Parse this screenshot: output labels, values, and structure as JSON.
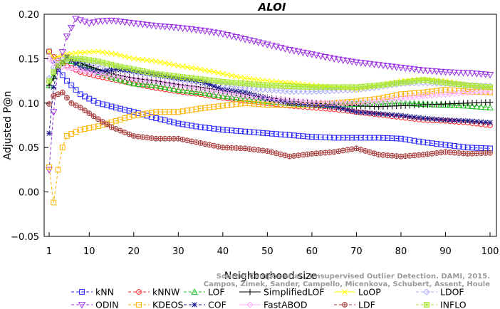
{
  "chart_data": {
    "type": "line",
    "title": "ALOI",
    "xlabel": "Neighborhood size",
    "ylabel": "Adjusted P@n",
    "xlim": [
      1,
      100
    ],
    "ylim": [
      -0.05,
      0.2
    ],
    "xticks": [
      "1",
      "10",
      "20",
      "30",
      "40",
      "50",
      "60",
      "70",
      "80",
      "90",
      "100"
    ],
    "yticks": [
      "−0.05",
      "0.00",
      "0.05",
      "0.10",
      "0.15",
      "0.20"
    ],
    "grid": false,
    "legend": "bottom",
    "watermark": [
      "Source: Campos et al., Unsupervised Outlier Detection. DAMI, 2015.",
      "Campos, Zimek, Sander, Campello, Micenkova, Schubert, Assent, Houle"
    ],
    "series": [
      {
        "name": "kNN",
        "color": "#2323ff",
        "marker": "square",
        "dash": "4,3",
        "points": [
          [
            1,
            0.158
          ],
          [
            2,
            0.148
          ],
          [
            3,
            0.138
          ],
          [
            5,
            0.125
          ],
          [
            8,
            0.11
          ],
          [
            12,
            0.1
          ],
          [
            16,
            0.095
          ],
          [
            20,
            0.09
          ],
          [
            25,
            0.083
          ],
          [
            30,
            0.077
          ],
          [
            35,
            0.073
          ],
          [
            40,
            0.07
          ],
          [
            45,
            0.068
          ],
          [
            50,
            0.066
          ],
          [
            55,
            0.064
          ],
          [
            60,
            0.062
          ],
          [
            65,
            0.061
          ],
          [
            70,
            0.061
          ],
          [
            75,
            0.061
          ],
          [
            80,
            0.06
          ],
          [
            85,
            0.056
          ],
          [
            90,
            0.053
          ],
          [
            95,
            0.05
          ],
          [
            100,
            0.049
          ]
        ]
      },
      {
        "name": "kNNW",
        "color": "#ff2020",
        "marker": "circle",
        "dash": "4,3",
        "points": [
          [
            1,
            0.158
          ],
          [
            2,
            0.152
          ],
          [
            3,
            0.15
          ],
          [
            5,
            0.142
          ],
          [
            8,
            0.135
          ],
          [
            12,
            0.13
          ],
          [
            16,
            0.126
          ],
          [
            20,
            0.122
          ],
          [
            25,
            0.117
          ],
          [
            30,
            0.113
          ],
          [
            35,
            0.11
          ],
          [
            40,
            0.106
          ],
          [
            45,
            0.103
          ],
          [
            50,
            0.1
          ],
          [
            55,
            0.097
          ],
          [
            60,
            0.095
          ],
          [
            65,
            0.093
          ],
          [
            70,
            0.09
          ],
          [
            75,
            0.087
          ],
          [
            80,
            0.084
          ],
          [
            85,
            0.081
          ],
          [
            90,
            0.08
          ],
          [
            95,
            0.078
          ],
          [
            100,
            0.075
          ]
        ]
      },
      {
        "name": "LOF",
        "color": "#18c418",
        "marker": "triangle",
        "dash": "4,3",
        "points": [
          [
            1,
            0.12
          ],
          [
            2,
            0.13
          ],
          [
            3,
            0.142
          ],
          [
            5,
            0.148
          ],
          [
            8,
            0.145
          ],
          [
            12,
            0.135
          ],
          [
            16,
            0.128
          ],
          [
            20,
            0.122
          ],
          [
            25,
            0.12
          ],
          [
            30,
            0.115
          ],
          [
            35,
            0.112
          ],
          [
            40,
            0.108
          ],
          [
            45,
            0.105
          ],
          [
            50,
            0.102
          ],
          [
            55,
            0.1
          ],
          [
            60,
            0.098
          ],
          [
            65,
            0.098
          ],
          [
            70,
            0.099
          ],
          [
            75,
            0.099
          ],
          [
            80,
            0.1
          ],
          [
            85,
            0.099
          ],
          [
            90,
            0.098
          ],
          [
            95,
            0.097
          ],
          [
            100,
            0.095
          ]
        ]
      },
      {
        "name": "SimplifiedLOF",
        "color": "#000000",
        "marker": "plus",
        "dash": "none",
        "points": [
          [
            1,
            0.12
          ],
          [
            2,
            0.128
          ],
          [
            3,
            0.14
          ],
          [
            5,
            0.15
          ],
          [
            8,
            0.145
          ],
          [
            12,
            0.138
          ],
          [
            16,
            0.132
          ],
          [
            20,
            0.128
          ],
          [
            25,
            0.125
          ],
          [
            30,
            0.121
          ],
          [
            35,
            0.118
          ],
          [
            40,
            0.114
          ],
          [
            45,
            0.11
          ],
          [
            50,
            0.106
          ],
          [
            55,
            0.103
          ],
          [
            60,
            0.1
          ],
          [
            65,
            0.098
          ],
          [
            70,
            0.097
          ],
          [
            75,
            0.096
          ],
          [
            80,
            0.097
          ],
          [
            85,
            0.098
          ],
          [
            90,
            0.099
          ],
          [
            95,
            0.1
          ],
          [
            100,
            0.101
          ]
        ]
      },
      {
        "name": "LoOP",
        "color": "#ffff00",
        "marker": "cross",
        "dash": "none",
        "points": [
          [
            1,
            0.158
          ],
          [
            2,
            0.15
          ],
          [
            3,
            0.152
          ],
          [
            5,
            0.155
          ],
          [
            8,
            0.157
          ],
          [
            12,
            0.158
          ],
          [
            16,
            0.155
          ],
          [
            20,
            0.15
          ],
          [
            25,
            0.147
          ],
          [
            30,
            0.142
          ],
          [
            35,
            0.138
          ],
          [
            40,
            0.133
          ],
          [
            45,
            0.128
          ],
          [
            50,
            0.125
          ],
          [
            55,
            0.123
          ],
          [
            60,
            0.12
          ],
          [
            65,
            0.118
          ],
          [
            70,
            0.115
          ],
          [
            75,
            0.12
          ],
          [
            80,
            0.125
          ],
          [
            85,
            0.127
          ],
          [
            90,
            0.125
          ],
          [
            95,
            0.12
          ],
          [
            100,
            0.117
          ]
        ]
      },
      {
        "name": "LDOF",
        "color": "#aaaaff",
        "marker": "diamond",
        "dash": "4,3",
        "points": [
          [
            1,
            0.128
          ],
          [
            2,
            0.14
          ],
          [
            3,
            0.148
          ],
          [
            5,
            0.15
          ],
          [
            8,
            0.148
          ],
          [
            12,
            0.143
          ],
          [
            16,
            0.14
          ],
          [
            20,
            0.135
          ],
          [
            25,
            0.132
          ],
          [
            30,
            0.127
          ],
          [
            35,
            0.123
          ],
          [
            40,
            0.12
          ],
          [
            45,
            0.117
          ],
          [
            50,
            0.115
          ],
          [
            55,
            0.113
          ],
          [
            60,
            0.113
          ],
          [
            65,
            0.114
          ],
          [
            70,
            0.115
          ],
          [
            75,
            0.118
          ],
          [
            80,
            0.122
          ],
          [
            85,
            0.123
          ],
          [
            90,
            0.122
          ],
          [
            95,
            0.12
          ],
          [
            100,
            0.119
          ]
        ]
      },
      {
        "name": "ODIN",
        "color": "#9a30e6",
        "marker": "tri-down",
        "dash": "4,3",
        "points": [
          [
            1,
            0.025
          ],
          [
            2,
            0.09
          ],
          [
            3,
            0.14
          ],
          [
            5,
            0.175
          ],
          [
            7,
            0.195
          ],
          [
            10,
            0.19
          ],
          [
            12,
            0.192
          ],
          [
            15,
            0.193
          ],
          [
            20,
            0.19
          ],
          [
            25,
            0.187
          ],
          [
            30,
            0.185
          ],
          [
            35,
            0.182
          ],
          [
            40,
            0.178
          ],
          [
            45,
            0.172
          ],
          [
            50,
            0.166
          ],
          [
            55,
            0.16
          ],
          [
            60,
            0.155
          ],
          [
            65,
            0.15
          ],
          [
            70,
            0.146
          ],
          [
            75,
            0.143
          ],
          [
            80,
            0.14
          ],
          [
            85,
            0.137
          ],
          [
            90,
            0.135
          ],
          [
            95,
            0.134
          ],
          [
            100,
            0.132
          ]
        ]
      },
      {
        "name": "KDEOS",
        "color": "#ffb000",
        "marker": "square",
        "dash": "4,3",
        "points": [
          [
            1,
            0.028
          ],
          [
            2,
            -0.012
          ],
          [
            3,
            0.025
          ],
          [
            4,
            0.05
          ],
          [
            5,
            0.063
          ],
          [
            8,
            0.07
          ],
          [
            12,
            0.074
          ],
          [
            16,
            0.08
          ],
          [
            20,
            0.086
          ],
          [
            25,
            0.09
          ],
          [
            30,
            0.09
          ],
          [
            35,
            0.094
          ],
          [
            40,
            0.097
          ],
          [
            45,
            0.1
          ],
          [
            50,
            0.098
          ],
          [
            55,
            0.098
          ],
          [
            60,
            0.098
          ],
          [
            65,
            0.1
          ],
          [
            70,
            0.102
          ],
          [
            75,
            0.105
          ],
          [
            80,
            0.11
          ],
          [
            85,
            0.112
          ],
          [
            90,
            0.115
          ],
          [
            95,
            0.113
          ],
          [
            100,
            0.112
          ]
        ]
      },
      {
        "name": "COF",
        "color": "#1a1a8c",
        "marker": "asterisk",
        "dash": "4,3",
        "points": [
          [
            1,
            0.066
          ],
          [
            2,
            0.118
          ],
          [
            3,
            0.14
          ],
          [
            5,
            0.152
          ],
          [
            8,
            0.14
          ],
          [
            12,
            0.135
          ],
          [
            16,
            0.138
          ],
          [
            20,
            0.136
          ],
          [
            25,
            0.132
          ],
          [
            30,
            0.128
          ],
          [
            35,
            0.125
          ],
          [
            40,
            0.115
          ],
          [
            45,
            0.112
          ],
          [
            50,
            0.105
          ],
          [
            55,
            0.1
          ],
          [
            60,
            0.098
          ],
          [
            65,
            0.096
          ],
          [
            70,
            0.09
          ],
          [
            75,
            0.088
          ],
          [
            80,
            0.086
          ],
          [
            85,
            0.083
          ],
          [
            90,
            0.081
          ],
          [
            95,
            0.08
          ],
          [
            100,
            0.078
          ]
        ]
      },
      {
        "name": "FastABOD",
        "color": "#ffaaff",
        "marker": "diamond",
        "dash": "none",
        "points": [
          [
            1,
            0.15
          ],
          [
            2,
            0.146
          ],
          [
            3,
            0.142
          ],
          [
            5,
            0.14
          ],
          [
            8,
            0.137
          ],
          [
            12,
            0.133
          ],
          [
            16,
            0.13
          ],
          [
            20,
            0.127
          ],
          [
            25,
            0.124
          ],
          [
            30,
            0.12
          ],
          [
            35,
            0.116
          ],
          [
            40,
            0.112
          ],
          [
            45,
            0.108
          ],
          [
            50,
            0.105
          ],
          [
            55,
            0.103
          ],
          [
            60,
            0.101
          ],
          [
            65,
            0.1
          ],
          [
            70,
            0.1
          ],
          [
            75,
            0.102
          ],
          [
            80,
            0.105
          ],
          [
            85,
            0.108
          ],
          [
            90,
            0.11
          ],
          [
            95,
            0.112
          ],
          [
            100,
            0.113
          ]
        ]
      },
      {
        "name": "LDF",
        "color": "#a83a3a",
        "marker": "circle-plus",
        "dash": "4,3",
        "points": [
          [
            1,
            0.099
          ],
          [
            2,
            0.108
          ],
          [
            3,
            0.11
          ],
          [
            4,
            0.112
          ],
          [
            6,
            0.1
          ],
          [
            8,
            0.095
          ],
          [
            12,
            0.082
          ],
          [
            15,
            0.073
          ],
          [
            20,
            0.063
          ],
          [
            25,
            0.06
          ],
          [
            30,
            0.06
          ],
          [
            35,
            0.055
          ],
          [
            40,
            0.05
          ],
          [
            45,
            0.049
          ],
          [
            50,
            0.046
          ],
          [
            55,
            0.04
          ],
          [
            60,
            0.043
          ],
          [
            65,
            0.045
          ],
          [
            70,
            0.049
          ],
          [
            75,
            0.042
          ],
          [
            80,
            0.04
          ],
          [
            85,
            0.042
          ],
          [
            90,
            0.045
          ],
          [
            95,
            0.043
          ],
          [
            100,
            0.044
          ]
        ]
      },
      {
        "name": "INFLO",
        "color": "#a8e632",
        "marker": "star-box",
        "dash": "4,3",
        "points": [
          [
            1,
            0.125
          ],
          [
            2,
            0.135
          ],
          [
            3,
            0.142
          ],
          [
            5,
            0.15
          ],
          [
            8,
            0.15
          ],
          [
            12,
            0.147
          ],
          [
            16,
            0.142
          ],
          [
            20,
            0.138
          ],
          [
            25,
            0.133
          ],
          [
            30,
            0.13
          ],
          [
            35,
            0.127
          ],
          [
            40,
            0.124
          ],
          [
            45,
            0.122
          ],
          [
            50,
            0.12
          ],
          [
            55,
            0.119
          ],
          [
            60,
            0.118
          ],
          [
            65,
            0.118
          ],
          [
            70,
            0.118
          ],
          [
            75,
            0.12
          ],
          [
            80,
            0.123
          ],
          [
            85,
            0.126
          ],
          [
            90,
            0.123
          ],
          [
            95,
            0.12
          ],
          [
            100,
            0.118
          ]
        ]
      }
    ],
    "legend_rows": [
      [
        "kNN",
        "kNNW",
        "LOF",
        "SimplifiedLOF",
        "LoOP",
        "LDOF"
      ],
      [
        "ODIN",
        "KDEOS",
        "COF",
        "FastABOD",
        "LDF",
        "INFLO"
      ]
    ]
  }
}
